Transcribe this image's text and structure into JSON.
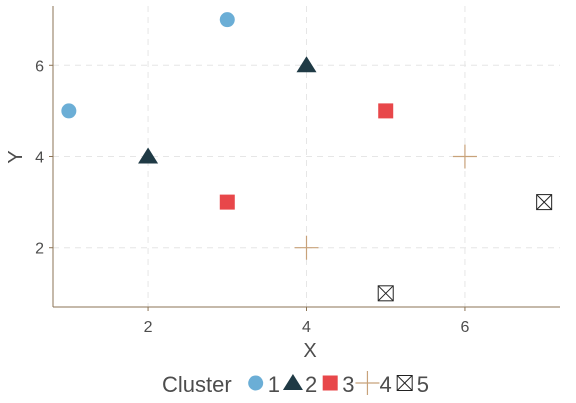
{
  "chart_data": {
    "type": "scatter",
    "xlabel": "X",
    "ylabel": "Y",
    "xlim": [
      0.8,
      7.2
    ],
    "ylim": [
      0.7,
      7.3
    ],
    "x_ticks": [
      2,
      4,
      6
    ],
    "y_ticks": [
      2,
      4,
      6
    ],
    "x_tick_labels": [
      "2",
      "4",
      "6"
    ],
    "y_tick_labels": [
      "2",
      "4",
      "6"
    ],
    "grid": true,
    "legend_title": "Cluster",
    "legend_position": "bottom",
    "series": [
      {
        "name": "1",
        "marker": "circle",
        "color": "#6baed6",
        "points": [
          {
            "x": 1,
            "y": 5
          },
          {
            "x": 3,
            "y": 7
          }
        ]
      },
      {
        "name": "2",
        "marker": "triangle",
        "color": "#1f3a45",
        "points": [
          {
            "x": 2,
            "y": 4
          },
          {
            "x": 4,
            "y": 6
          }
        ]
      },
      {
        "name": "3",
        "marker": "square",
        "color": "#e8474a",
        "points": [
          {
            "x": 3,
            "y": 3
          },
          {
            "x": 5,
            "y": 5
          }
        ]
      },
      {
        "name": "4",
        "marker": "plus",
        "color": "#c8a27a",
        "points": [
          {
            "x": 4,
            "y": 2
          },
          {
            "x": 6,
            "y": 4
          }
        ]
      },
      {
        "name": "5",
        "marker": "boxed-x",
        "color": "#222222",
        "points": [
          {
            "x": 5,
            "y": 1
          },
          {
            "x": 7,
            "y": 3
          }
        ]
      }
    ],
    "colors": {
      "axis": "#8b7355",
      "grid": "#e6e6e6",
      "text": "#4d4d4d"
    }
  }
}
